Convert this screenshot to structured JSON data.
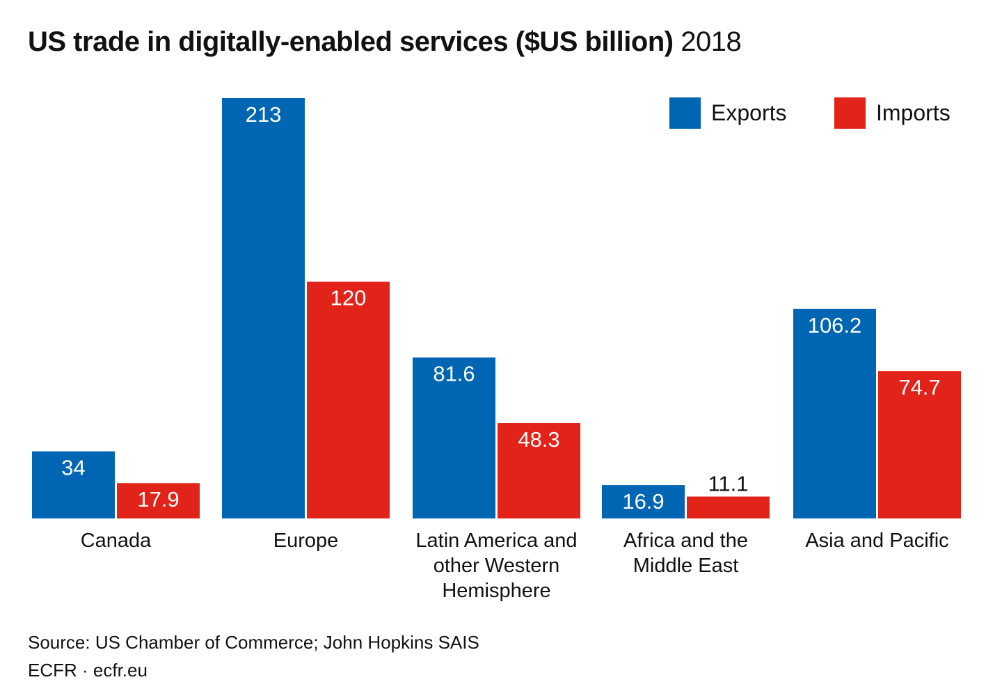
{
  "title": "US trade in digitally-enabled services ($US billion)",
  "subtitle": "2018",
  "source": "Source: US Chamber of Commerce; John Hopkins SAIS",
  "credit": "ECFR · ecfr.eu",
  "colors": {
    "exports": "#0066b3",
    "imports": "#e2231a",
    "text_on_bar": "#ffffff",
    "text": "#111111"
  },
  "chart_data": {
    "type": "bar",
    "categories": [
      [
        "Canada"
      ],
      [
        "Europe"
      ],
      [
        "Latin America and",
        "other Western",
        "Hemisphere"
      ],
      [
        "Africa and the",
        "Middle East"
      ],
      [
        "Asia and Pacific"
      ]
    ],
    "series": [
      {
        "name": "Exports",
        "values": [
          34,
          213,
          81.6,
          16.9,
          106.2
        ],
        "labels": [
          "34",
          "213",
          "81.6",
          "16.9",
          "106.2"
        ]
      },
      {
        "name": "Imports",
        "values": [
          17.9,
          120,
          48.3,
          11.1,
          74.7
        ],
        "labels": [
          "17.9",
          "120",
          "48.3",
          "11.1",
          "74.7"
        ]
      }
    ],
    "ylim": [
      0,
      213
    ],
    "grid": false,
    "legend": "top-right",
    "xlabel": "",
    "ylabel": ""
  }
}
